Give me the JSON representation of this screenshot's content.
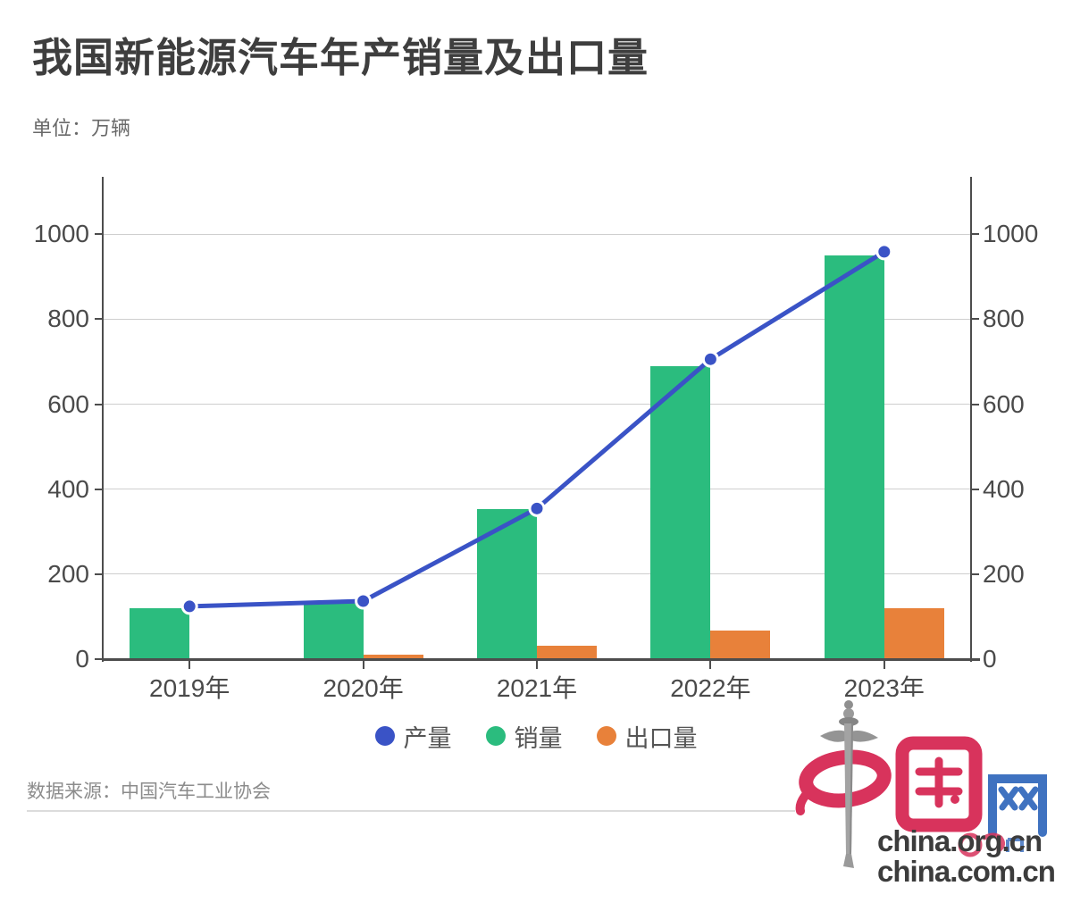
{
  "header": {
    "title": "我国新能源汽车年产销量及出口量",
    "unit": "单位：万辆"
  },
  "chart_data": {
    "type": "combo",
    "title": "我国新能源汽车年产销量及出口量",
    "unit": "万辆",
    "categories": [
      "2019年",
      "2020年",
      "2021年",
      "2022年",
      "2023年"
    ],
    "series": [
      {
        "name": "产量",
        "type": "line",
        "color": "#3a53c6",
        "values": [
          124.2,
          136.6,
          354.5,
          705.8,
          958.7
        ]
      },
      {
        "name": "销量",
        "type": "bar",
        "color": "#2bbc7e",
        "values": [
          120.6,
          136.7,
          352.1,
          688.7,
          949.5
        ]
      },
      {
        "name": "出口量",
        "type": "bar",
        "color": "#e8813a",
        "values": [
          0,
          10,
          31.1,
          67.9,
          120.3
        ]
      }
    ],
    "yticks": [
      0,
      200,
      400,
      600,
      800,
      1000
    ],
    "ylim": [
      0,
      1135
    ],
    "xlabel": "",
    "ylabel": "",
    "grid": true,
    "dual_axis": true,
    "legend_position": "bottom"
  },
  "footer": {
    "source": "数据来源：中国汽车工业协会"
  },
  "logo": {
    "brand_cn": "中国",
    "brand_net": "网",
    "domain_org": "china.org.cn",
    "domain_com": "china.com.cn"
  },
  "colors": {
    "production_blue": "#3a53c6",
    "sales_green": "#2bbc7e",
    "export_orange": "#e8813a",
    "grid_gray": "#cfcfcf",
    "axis_gray": "#4d4d4d",
    "logo_red": "#d8335c",
    "logo_blue": "#3f72c0"
  }
}
